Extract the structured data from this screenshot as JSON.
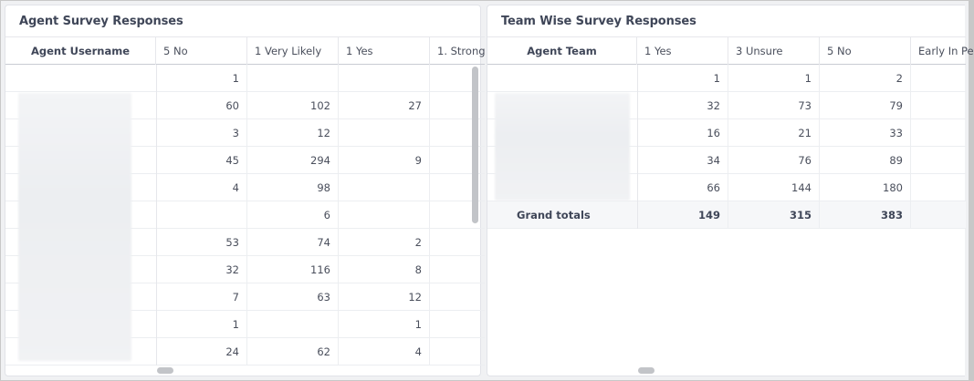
{
  "agent_panel": {
    "title": "Agent Survey Responses",
    "columns": [
      "Agent Username",
      "5 No",
      "1 Very Likely",
      "1 Yes",
      "1. Strong"
    ],
    "rows": [
      [
        "",
        "1",
        "",
        "",
        ""
      ],
      [
        "",
        "60",
        "102",
        "27",
        ""
      ],
      [
        "",
        "3",
        "12",
        "",
        ""
      ],
      [
        "",
        "45",
        "294",
        "9",
        ""
      ],
      [
        "",
        "4",
        "98",
        "",
        ""
      ],
      [
        "",
        "",
        "6",
        "",
        ""
      ],
      [
        "",
        "53",
        "74",
        "2",
        ""
      ],
      [
        "",
        "32",
        "116",
        "8",
        ""
      ],
      [
        "",
        "7",
        "63",
        "12",
        ""
      ],
      [
        "",
        "1",
        "",
        "1",
        ""
      ],
      [
        "",
        "24",
        "62",
        "4",
        ""
      ]
    ]
  },
  "team_panel": {
    "title": "Team Wise Survey Responses",
    "columns": [
      "Agent Team",
      "1 Yes",
      "3 Unsure",
      "5 No",
      "Early In Pe"
    ],
    "rows": [
      [
        "",
        "1",
        "1",
        "2",
        ""
      ],
      [
        "",
        "32",
        "73",
        "79",
        ""
      ],
      [
        "",
        "16",
        "21",
        "33",
        ""
      ],
      [
        "",
        "34",
        "76",
        "89",
        ""
      ],
      [
        "",
        "66",
        "144",
        "180",
        ""
      ]
    ],
    "totals": [
      "Grand totals",
      "149",
      "315",
      "383",
      ""
    ]
  }
}
